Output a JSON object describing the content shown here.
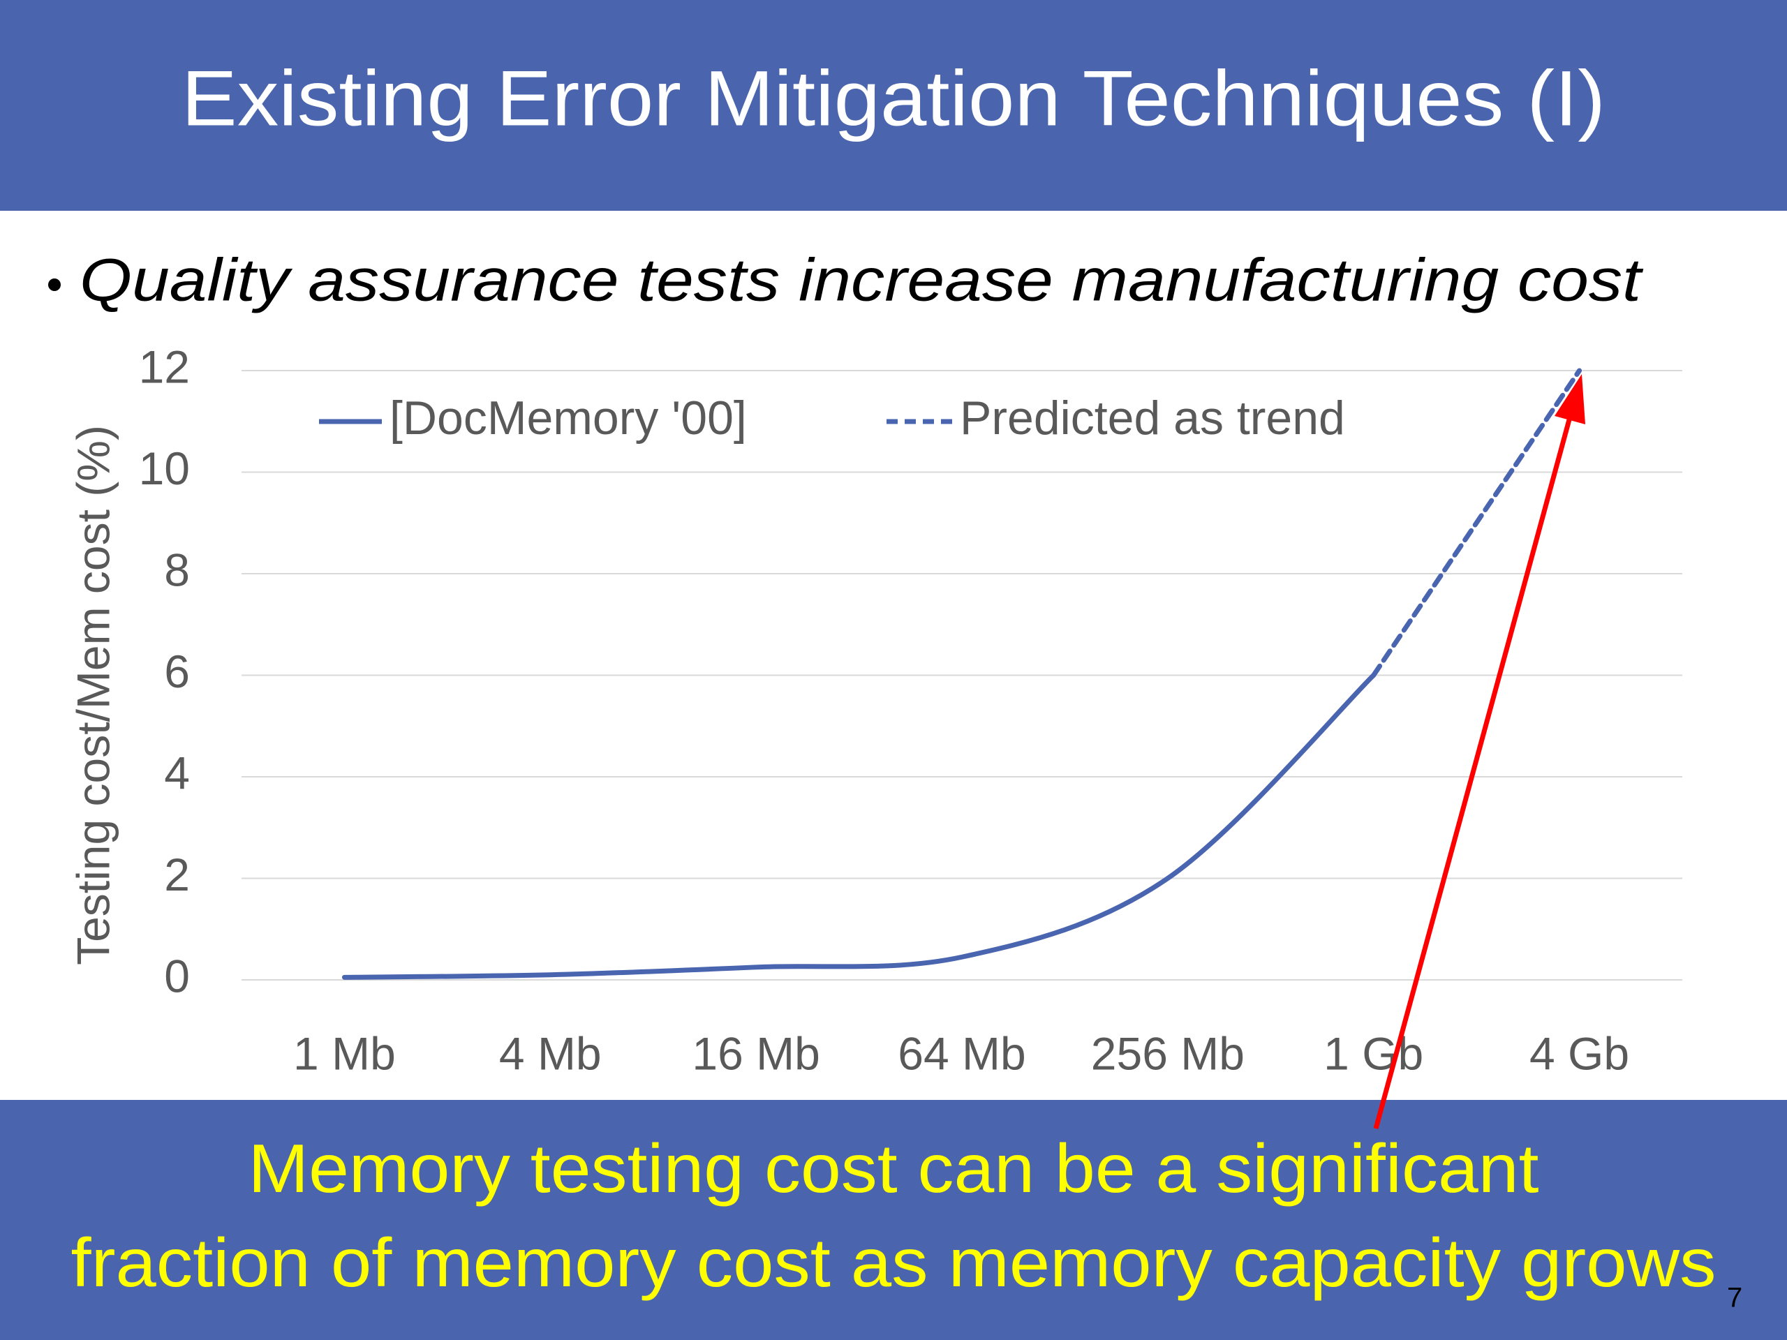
{
  "slide_title": "Existing Error Mitigation Techniques (I)",
  "bullet": "Quality assurance tests increase manufacturing cost",
  "chart_data": {
    "type": "line",
    "ylabel": "Testing cost/Mem cost (%)",
    "categories": [
      "1 Mb",
      "4 Mb",
      "16 Mb",
      "64 Mb",
      "256 Mb",
      "1 Gb",
      "4 Gb"
    ],
    "series": [
      {
        "name": "[DocMemory '00]",
        "color": "#4a65b0",
        "line_style": "solid",
        "values": [
          0.05,
          0.1,
          0.25,
          0.45,
          2.0,
          6,
          null
        ]
      },
      {
        "name": "Predicted as trend",
        "color": "#4a65b0",
        "line_style": "dashed",
        "values": [
          null,
          null,
          null,
          null,
          null,
          6,
          12
        ]
      }
    ],
    "ylim": [
      0,
      12
    ],
    "yticks": [
      0,
      2,
      4,
      6,
      8,
      10,
      12
    ],
    "grid": true,
    "legend": "top"
  },
  "callout": [
    "Memory testing cost can be a significant",
    "fraction of memory cost as memory capacity grows"
  ],
  "page_number": "7"
}
